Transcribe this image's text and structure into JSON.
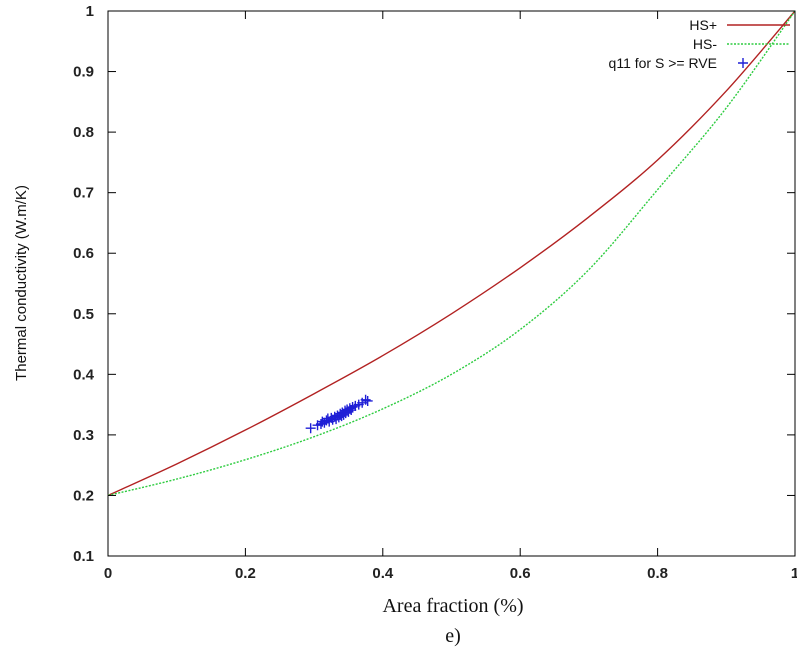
{
  "chart_data": {
    "type": "line",
    "title": "",
    "xlabel": "Area fraction (%)",
    "ylabel": "Thermal conductivity (W.m/K)",
    "caption": "e)",
    "xlim": [
      0,
      1
    ],
    "ylim": [
      0.1,
      1
    ],
    "xticks": [
      "0",
      "0.2",
      "0.4",
      "0.6",
      "0.8",
      "1"
    ],
    "xtick_values": [
      0,
      0.2,
      0.4,
      0.6,
      0.8,
      1
    ],
    "yticks": [
      "0.1",
      "0.2",
      "0.3",
      "0.4",
      "0.5",
      "0.6",
      "0.7",
      "0.8",
      "0.9",
      "1"
    ],
    "ytick_values": [
      0.1,
      0.2,
      0.3,
      0.4,
      0.5,
      0.6,
      0.7,
      0.8,
      0.9,
      1
    ],
    "legend_position": "top-right",
    "grid": false,
    "series": [
      {
        "name": "HS+",
        "style": "line",
        "color": "#b22222",
        "x": [
          0,
          0.1,
          0.2,
          0.3,
          0.4,
          0.5,
          0.6,
          0.7,
          0.8,
          0.9,
          1
        ],
        "y": [
          0.2,
          0.252,
          0.308,
          0.368,
          0.431,
          0.5,
          0.576,
          0.66,
          0.754,
          0.868,
          1
        ]
      },
      {
        "name": "HS-",
        "style": "line",
        "color": "#2ecc40",
        "x": [
          0,
          0.1,
          0.2,
          0.3,
          0.4,
          0.5,
          0.6,
          0.7,
          0.8,
          0.9,
          1
        ],
        "y": [
          0.2,
          0.227,
          0.259,
          0.297,
          0.343,
          0.4,
          0.474,
          0.573,
          0.705,
          0.84,
          1
        ]
      },
      {
        "name": "q11 for S >= RVE",
        "style": "markers",
        "marker": "plus",
        "color": "#1f1fd6",
        "x": [
          0.295,
          0.305,
          0.31,
          0.312,
          0.315,
          0.318,
          0.32,
          0.322,
          0.325,
          0.327,
          0.33,
          0.332,
          0.334,
          0.336,
          0.338,
          0.34,
          0.341,
          0.343,
          0.345,
          0.346,
          0.348,
          0.35,
          0.352,
          0.354,
          0.356,
          0.36,
          0.365,
          0.37,
          0.375,
          0.378
        ],
        "y": [
          0.311,
          0.316,
          0.318,
          0.322,
          0.32,
          0.324,
          0.327,
          0.322,
          0.328,
          0.325,
          0.33,
          0.326,
          0.332,
          0.329,
          0.335,
          0.331,
          0.337,
          0.333,
          0.34,
          0.336,
          0.342,
          0.338,
          0.344,
          0.341,
          0.346,
          0.348,
          0.35,
          0.353,
          0.358,
          0.356
        ]
      }
    ]
  }
}
